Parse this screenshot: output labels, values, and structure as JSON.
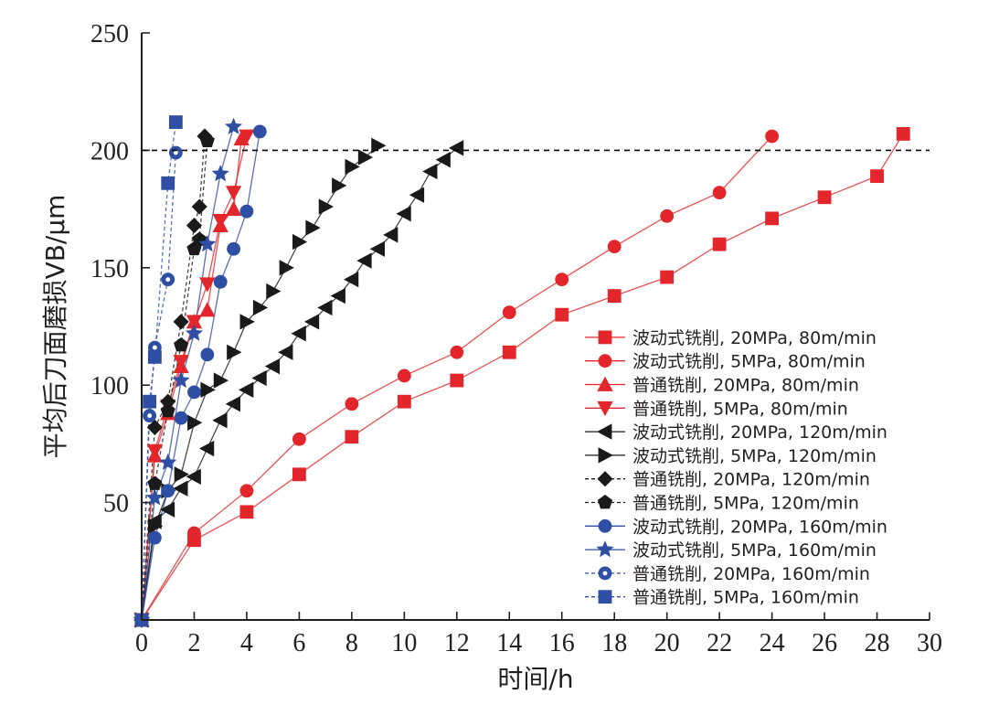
{
  "chart_data": {
    "type": "line",
    "title": "",
    "xlabel": "时间/h",
    "ylabel": "平均后刀面磨损VB/μm",
    "xlim": [
      0,
      30
    ],
    "ylim": [
      0,
      250
    ],
    "xticks": [
      "0",
      "2",
      "4",
      "6",
      "8",
      "10",
      "12",
      "14",
      "16",
      "18",
      "20",
      "22",
      "24",
      "26",
      "28",
      "30"
    ],
    "yticks": [
      "50",
      "100",
      "150",
      "200",
      "250"
    ],
    "grid": false,
    "legend_position": "bottom-right",
    "reference_line": {
      "y": 200,
      "style": "dashed",
      "color": "#000000"
    },
    "series": [
      {
        "name": "波动式铣削, 20MPa, 80m/min",
        "color": "#e3262b",
        "marker": "square",
        "line": "solid",
        "x": [
          0,
          2,
          4,
          6,
          8,
          10,
          12,
          14,
          16,
          18,
          20,
          22,
          24,
          26,
          28,
          29
        ],
        "y": [
          0,
          34,
          46,
          62,
          78,
          93,
          102,
          114,
          130,
          138,
          146,
          160,
          171,
          180,
          189,
          207
        ]
      },
      {
        "name": "波动式铣削, 5MPa, 80m/min",
        "color": "#e3262b",
        "marker": "circle",
        "line": "solid",
        "x": [
          0,
          2,
          4,
          6,
          8,
          10,
          12,
          14,
          16,
          18,
          20,
          22,
          24
        ],
        "y": [
          0,
          37,
          55,
          77,
          92,
          104,
          114,
          131,
          145,
          159,
          172,
          182,
          206
        ]
      },
      {
        "name": "普通铣削, 20MPa, 80m/min",
        "color": "#e3262b",
        "marker": "triangle-up",
        "line": "solid",
        "x": [
          0,
          0.5,
          1,
          1.5,
          2,
          2.5,
          3,
          3.5,
          3.8
        ],
        "y": [
          0,
          70,
          88,
          108,
          127,
          132,
          168,
          175,
          205
        ]
      },
      {
        "name": "普通铣削, 5MPa, 80m/min",
        "color": "#e3262b",
        "marker": "triangle-down",
        "line": "solid",
        "x": [
          0,
          0.5,
          1,
          1.5,
          2,
          2.5,
          3,
          3.5,
          4
        ],
        "y": [
          0,
          72,
          91,
          110,
          127,
          143,
          170,
          182,
          206
        ]
      },
      {
        "name": "波动式铣削, 20MPa, 120m/min",
        "color": "#1a1a1a",
        "marker": "triangle-left",
        "line": "solid",
        "x": [
          0,
          0.5,
          1,
          1.5,
          2,
          2.5,
          3,
          3.5,
          4,
          4.5,
          5,
          5.5,
          6,
          6.5,
          7,
          7.5,
          8,
          8.5,
          9,
          9.5,
          10,
          10.5,
          11,
          11.5,
          12
        ],
        "y": [
          0,
          42,
          47,
          56,
          61,
          73,
          85,
          92,
          98,
          103,
          108,
          114,
          122,
          127,
          133,
          138,
          145,
          153,
          158,
          164,
          173,
          181,
          191,
          196,
          201
        ]
      },
      {
        "name": "波动式铣削, 5MPa, 120m/min",
        "color": "#1a1a1a",
        "marker": "triangle-right",
        "line": "solid",
        "x": [
          0,
          0.5,
          1,
          1.5,
          2,
          2.5,
          3,
          3.5,
          4,
          4.5,
          5,
          5.5,
          6,
          6.5,
          7,
          7.5,
          8,
          8.5,
          9
        ],
        "y": [
          0,
          40,
          55,
          62,
          84,
          98,
          102,
          114,
          127,
          133,
          140,
          150,
          161,
          167,
          176,
          185,
          193,
          197,
          202
        ]
      },
      {
        "name": "普通铣削, 20MPa, 120m/min",
        "color": "#1a1a1a",
        "marker": "diamond",
        "line": "dashed",
        "x": [
          0,
          0.5,
          1,
          1.5,
          2,
          2.2,
          2.4
        ],
        "y": [
          0,
          82,
          93,
          127,
          168,
          176,
          206
        ]
      },
      {
        "name": "普通铣削, 5MPa, 120m/min",
        "color": "#1a1a1a",
        "marker": "pentagon",
        "line": "dashed",
        "x": [
          0,
          0.5,
          1,
          1.5,
          2,
          2.2,
          2.5
        ],
        "y": [
          0,
          58,
          89,
          117,
          158,
          162,
          204
        ]
      },
      {
        "name": "波动式铣削, 20MPa, 160m/min",
        "color": "#2e4fa3",
        "marker": "circle",
        "line": "solid",
        "x": [
          0,
          0.5,
          1,
          1.5,
          2,
          2.5,
          3,
          3.5,
          4,
          4.5
        ],
        "y": [
          0,
          35,
          55,
          86,
          97,
          113,
          144,
          158,
          174,
          208
        ]
      },
      {
        "name": "波动式铣削, 5MPa, 160m/min",
        "color": "#2e4fa3",
        "marker": "star",
        "line": "solid",
        "x": [
          0,
          0.5,
          1,
          1.5,
          2,
          2.5,
          3,
          3.5
        ],
        "y": [
          0,
          52,
          67,
          102,
          122,
          160,
          190,
          210
        ]
      },
      {
        "name": "普通铣削, 20MPa, 160m/min",
        "color": "#2e4fa3",
        "marker": "circle-dot",
        "line": "dashed",
        "x": [
          0,
          0.3,
          0.5,
          1,
          1.3
        ],
        "y": [
          0,
          87,
          116,
          145,
          199
        ]
      },
      {
        "name": "普通铣削, 5MPa, 160m/min",
        "color": "#2e4fa3",
        "marker": "square",
        "line": "dashed",
        "x": [
          0,
          0.3,
          0.5,
          1,
          1.3
        ],
        "y": [
          0,
          93,
          112,
          186,
          212
        ]
      }
    ]
  }
}
